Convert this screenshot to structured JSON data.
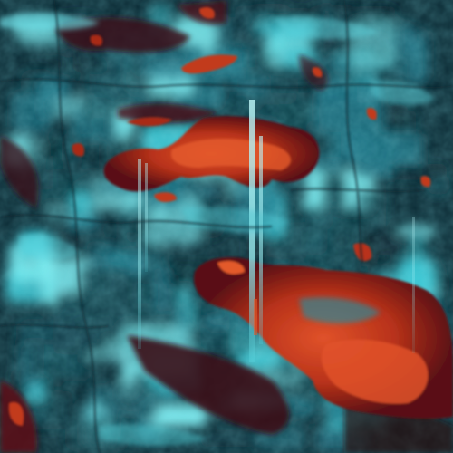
{
  "image": {
    "subject": "abstract-heatmap-artwork",
    "palette": {
      "base_dark": "#0b2630",
      "deep_teal": "#13444f",
      "mid_teal": "#1f7283",
      "cyan": "#3ec9d6",
      "bright_cyan": "#7ff0f4",
      "maroon": "#3a0c18",
      "deep_red": "#7a1b16",
      "red": "#c23a1c",
      "orange_red": "#e0522a"
    }
  }
}
